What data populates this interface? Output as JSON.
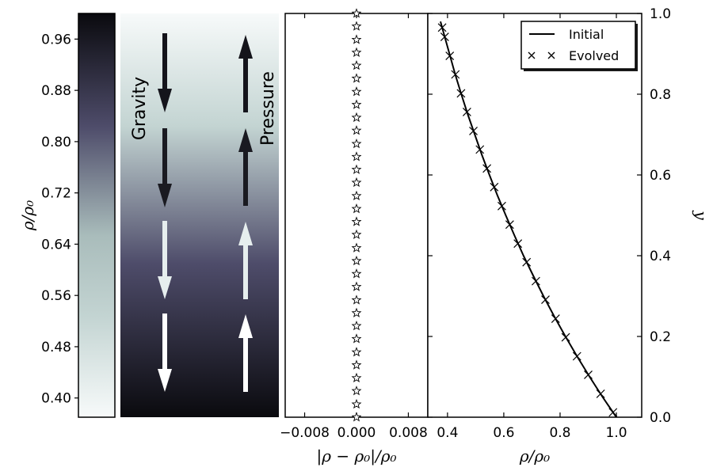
{
  "colorbar": {
    "ticks": [
      "0.96",
      "0.88",
      "0.80",
      "0.72",
      "0.64",
      "0.56",
      "0.48",
      "0.40"
    ],
    "tick_values": [
      0.96,
      0.88,
      0.8,
      0.72,
      0.64,
      0.56,
      0.48,
      0.4
    ],
    "range": [
      0.37,
      1.0
    ],
    "label": "ρ/ρ₀",
    "colors": [
      "#f7fafa",
      "#c3d4d2",
      "#a9bcbb",
      "#4e4c6a",
      "#0a0a0e"
    ]
  },
  "annotations": {
    "gravity": "Gravity",
    "pressure": "Pressure"
  },
  "chart_data": [
    {
      "type": "scatter",
      "name": "residual-panel",
      "xlabel": "|ρ − ρ₀|/ρ₀",
      "xlim": [
        -0.011,
        0.011
      ],
      "ylim": [
        0.0,
        1.0
      ],
      "xtick_labels": [
        "−0.008",
        "0.000",
        "0.008"
      ],
      "xtick_values": [
        -0.008,
        0.0,
        0.008
      ],
      "marker": "star",
      "x": [
        0,
        0,
        0,
        0,
        0,
        0,
        0,
        0,
        0,
        0,
        0,
        0,
        0,
        0,
        0,
        0,
        0,
        0,
        0,
        0,
        0,
        0,
        0,
        0,
        0,
        0,
        0,
        0,
        0,
        0,
        0,
        0
      ],
      "y": [
        1.0,
        0.968,
        0.935,
        0.903,
        0.871,
        0.839,
        0.806,
        0.774,
        0.742,
        0.71,
        0.677,
        0.645,
        0.613,
        0.581,
        0.548,
        0.516,
        0.484,
        0.452,
        0.419,
        0.387,
        0.355,
        0.323,
        0.29,
        0.258,
        0.226,
        0.194,
        0.161,
        0.129,
        0.097,
        0.065,
        0.032,
        0.0
      ]
    },
    {
      "type": "line",
      "name": "density-profile",
      "xlabel": "ρ/ρ₀",
      "ylabel": "y",
      "xlim": [
        0.33,
        1.09
      ],
      "ylim": [
        0.0,
        1.0
      ],
      "xtick_labels": [
        "0.4",
        "0.6",
        "0.8",
        "1.0"
      ],
      "xtick_values": [
        0.4,
        0.6,
        0.8,
        1.0
      ],
      "ytick_labels": [
        "0.0",
        "0.2",
        "0.4",
        "0.6",
        "0.8",
        "1.0"
      ],
      "ytick_values": [
        0.0,
        0.2,
        0.4,
        0.6,
        0.8,
        1.0
      ],
      "legend_position": "top-right",
      "series": [
        {
          "name": "Initial",
          "style": "solid-line",
          "y": [
            0.0,
            0.05,
            0.1,
            0.15,
            0.2,
            0.25,
            0.3,
            0.35,
            0.4,
            0.45,
            0.5,
            0.55,
            0.6,
            0.65,
            0.7,
            0.75,
            0.8,
            0.85,
            0.9,
            0.95,
            0.98
          ],
          "x": [
            1.0,
            0.951,
            0.905,
            0.861,
            0.819,
            0.779,
            0.741,
            0.705,
            0.67,
            0.638,
            0.607,
            0.577,
            0.549,
            0.522,
            0.497,
            0.472,
            0.449,
            0.427,
            0.407,
            0.387,
            0.375
          ]
        },
        {
          "name": "Evolved",
          "style": "x-marker",
          "y": [
            0.012,
            0.058,
            0.105,
            0.151,
            0.198,
            0.244,
            0.291,
            0.337,
            0.384,
            0.43,
            0.477,
            0.523,
            0.57,
            0.616,
            0.663,
            0.709,
            0.756,
            0.802,
            0.849,
            0.895,
            0.942,
            0.965
          ],
          "x": [
            0.988,
            0.944,
            0.9,
            0.86,
            0.82,
            0.784,
            0.748,
            0.714,
            0.681,
            0.65,
            0.621,
            0.593,
            0.566,
            0.54,
            0.515,
            0.492,
            0.469,
            0.448,
            0.428,
            0.408,
            0.39,
            0.381
          ]
        }
      ]
    }
  ]
}
